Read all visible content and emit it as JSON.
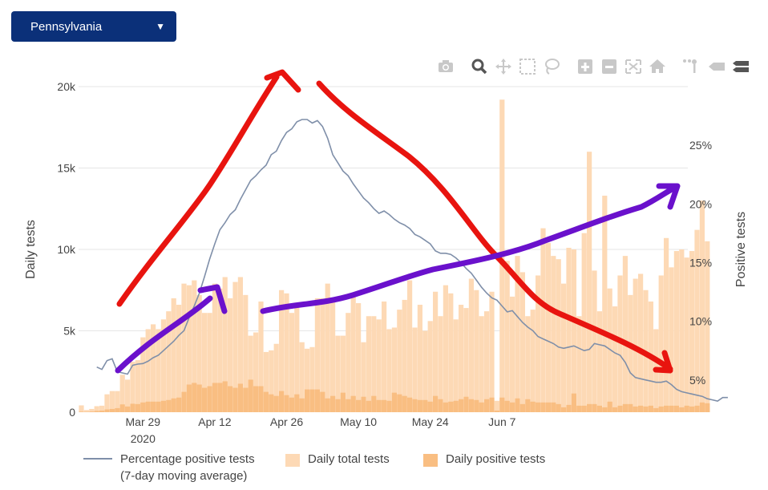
{
  "state_selector": {
    "value": "Pennsylvania"
  },
  "modebar": {
    "icons": [
      "camera-icon",
      "zoom-icon",
      "pan-icon",
      "box-select-icon",
      "lasso-select-icon",
      "zoom-in-icon",
      "zoom-out-icon",
      "autoscale-icon",
      "reset-axes-icon",
      "spike-lines-icon",
      "hover-closest-icon",
      "hover-compare-icon"
    ]
  },
  "legend": {
    "line_label": "Percentage positive tests\n(7-day moving average)",
    "total_label": "Daily total tests",
    "positive_label": "Daily positive tests"
  },
  "colors": {
    "total_bar": "#fdd9b5",
    "positive_bar": "#f9be82",
    "line": "#7f8fa9",
    "select_bg": "#0b3079",
    "annotation_red": "#e8140f",
    "annotation_purple": "#6a11cc"
  },
  "chart_data": {
    "type": "bar",
    "start_date": "2020-03-17",
    "x_tick_labels": [
      {
        "date": "2020-03-29",
        "label": "Mar 29",
        "sub": "2020"
      },
      {
        "date": "2020-04-12",
        "label": "Apr 12",
        "sub": ""
      },
      {
        "date": "2020-04-26",
        "label": "Apr 26",
        "sub": ""
      },
      {
        "date": "2020-05-10",
        "label": "May 10",
        "sub": ""
      },
      {
        "date": "2020-05-24",
        "label": "May 24",
        "sub": ""
      },
      {
        "date": "2020-06-07",
        "label": "Jun 7",
        "sub": ""
      }
    ],
    "y_left": {
      "title": "Daily tests",
      "range": [
        0,
        20000
      ],
      "ticks": [
        {
          "value": 0,
          "label": "0"
        },
        {
          "value": 5000,
          "label": "5k"
        },
        {
          "value": 10000,
          "label": "10k"
        },
        {
          "value": 15000,
          "label": "15k"
        },
        {
          "value": 20000,
          "label": "20k"
        }
      ]
    },
    "y_right": {
      "title": "Positive tests",
      "range": [
        0.0225,
        0.3
      ],
      "format": "percent",
      "ticks": [
        {
          "value": 0.05,
          "label": "5%"
        },
        {
          "value": 0.1,
          "label": "10%"
        },
        {
          "value": 0.15,
          "label": "15%"
        },
        {
          "value": 0.2,
          "label": "20%"
        },
        {
          "value": 0.25,
          "label": "25%"
        }
      ]
    },
    "grid": true,
    "legend_position": "bottom",
    "series": [
      {
        "name": "Daily total tests",
        "type": "bar",
        "axis": "left",
        "values": [
          420,
          130,
          200,
          370,
          400,
          1100,
          1300,
          1300,
          2300,
          2000,
          3100,
          3200,
          4600,
          5100,
          5400,
          5100,
          5700,
          6200,
          7000,
          6600,
          7900,
          7800,
          8100,
          7200,
          6100,
          6100,
          7900,
          7600,
          8300,
          7000,
          8000,
          8300,
          7200,
          4700,
          4900,
          6800,
          3700,
          3800,
          4200,
          7500,
          7300,
          6100,
          6700,
          4300,
          3900,
          4000,
          7000,
          7000,
          7900,
          6800,
          4700,
          4700,
          6100,
          7200,
          6700,
          4300,
          5900,
          5900,
          5700,
          6800,
          5100,
          5200,
          6300,
          6900,
          8100,
          5200,
          6600,
          5000,
          5600,
          7400,
          5900,
          7800,
          7300,
          5700,
          6600,
          6400,
          8200,
          7500,
          5900,
          6200,
          7400,
          700,
          19200,
          9300,
          7100,
          9600,
          8600,
          5900,
          6300,
          8400,
          11300,
          10400,
          9600,
          9400,
          7900,
          10100,
          10000,
          5900,
          11000,
          16000,
          8700,
          6200,
          13300,
          7600,
          6500,
          8400,
          9600,
          7200,
          8200,
          8500,
          7500,
          6800,
          5100,
          8400,
          10700,
          8900,
          9900,
          10000,
          9500,
          9900,
          11200,
          13000,
          10500
        ]
      },
      {
        "name": "Daily positive tests",
        "type": "bar",
        "axis": "left",
        "values": [
          30,
          20,
          40,
          80,
          100,
          170,
          200,
          250,
          480,
          350,
          520,
          500,
          600,
          650,
          650,
          650,
          700,
          750,
          850,
          900,
          1250,
          1700,
          1800,
          1700,
          1500,
          1600,
          1800,
          1800,
          1900,
          1600,
          1500,
          1750,
          1500,
          2000,
          1600,
          1600,
          1250,
          1100,
          1000,
          1300,
          1050,
          900,
          1100,
          850,
          1400,
          1400,
          1400,
          1250,
          850,
          1000,
          800,
          1200,
          800,
          1000,
          750,
          950,
          700,
          1000,
          750,
          750,
          700,
          1200,
          1100,
          1000,
          900,
          800,
          750,
          750,
          650,
          1000,
          800,
          600,
          650,
          700,
          800,
          950,
          800,
          750,
          600,
          800,
          900,
          100,
          900,
          700,
          600,
          850,
          500,
          800,
          650,
          600,
          600,
          600,
          600,
          500,
          300,
          450,
          1150,
          400,
          400,
          500,
          500,
          400,
          300,
          650,
          300,
          400,
          500,
          500,
          350,
          400,
          350,
          400,
          250,
          350,
          400,
          400,
          400,
          300,
          400,
          350,
          400,
          600,
          550
        ]
      },
      {
        "name": "Percentage positive tests",
        "type": "line",
        "axis": "right",
        "x_start_offset": 3,
        "values": [
          0.061,
          0.059,
          0.0665,
          0.068,
          0.057,
          0.056,
          0.055,
          0.0625,
          0.0635,
          0.064,
          0.066,
          0.069,
          0.071,
          0.075,
          0.079,
          0.083,
          0.088,
          0.092,
          0.103,
          0.113,
          0.124,
          0.138,
          0.153,
          0.166,
          0.178,
          0.184,
          0.191,
          0.195,
          0.204,
          0.212,
          0.22,
          0.224,
          0.229,
          0.233,
          0.242,
          0.245,
          0.254,
          0.261,
          0.264,
          0.27,
          0.272,
          0.272,
          0.269,
          0.271,
          0.266,
          0.256,
          0.242,
          0.235,
          0.228,
          0.224,
          0.217,
          0.211,
          0.205,
          0.201,
          0.196,
          0.192,
          0.194,
          0.191,
          0.187,
          0.184,
          0.182,
          0.179,
          0.174,
          0.172,
          0.169,
          0.166,
          0.16,
          0.158,
          0.158,
          0.157,
          0.154,
          0.15,
          0.145,
          0.141,
          0.135,
          0.129,
          0.124,
          0.12,
          0.118,
          0.113,
          0.108,
          0.109,
          0.104,
          0.099,
          0.095,
          0.092,
          0.087,
          0.085,
          0.083,
          0.081,
          0.078,
          0.077,
          0.078,
          0.079,
          0.077,
          0.075,
          0.076,
          0.081,
          0.08,
          0.079,
          0.076,
          0.073,
          0.071,
          0.065,
          0.056,
          0.052,
          0.051,
          0.05,
          0.049,
          0.048,
          0.048,
          0.049,
          0.046,
          0.042,
          0.04,
          0.039,
          0.038,
          0.037,
          0.036,
          0.034,
          0.033,
          0.032,
          0.035,
          0.035
        ]
      }
    ]
  }
}
